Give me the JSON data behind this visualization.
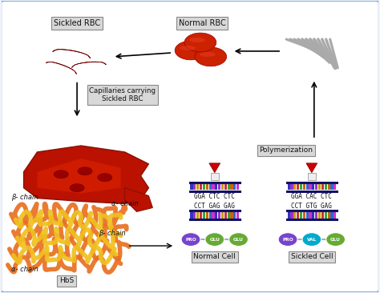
{
  "bg_color": "#eef2fa",
  "border_color": "#6699cc",
  "labels": {
    "sickled_rbc": "Sickled RBC",
    "normal_rbc": "Normal RBC",
    "capillaries": "Capillaries carrying\nSickled RBC",
    "polymerization": "Polymerization",
    "hbs": "HbS",
    "beta_chain_top": "β- chain",
    "alpha_chain_top": "α- chain",
    "beta_chain_bot": "β- chain",
    "alpha_chain_bot": "α- chain",
    "normal_cell": "Normal Cell",
    "sickled_cell": "Sickled Cell",
    "normal_top_seq": "GGA CTC CTC",
    "normal_bot_seq": "CCT GAG GAG",
    "sickled_top_seq": "GGA CAC CTC",
    "sickled_bot_seq": "CCT GTG GAG"
  },
  "colors": {
    "sickled_rbc": "#aa0000",
    "normal_rbc": "#cc2200",
    "capillary": "#cc1100",
    "hbs_orange": "#e87020",
    "hbs_yellow": "#f0c020",
    "pro_circle": "#7744cc",
    "glu_circle": "#66aa33",
    "val_circle": "#00aacc",
    "box_fill": "#d8d8d8",
    "box_edge": "#888888",
    "red_triangle": "#cc0000",
    "fiber_color": "#aaaaaa"
  },
  "dna_stripe_colors": [
    "#3333bb",
    "#9933cc",
    "#cc9900",
    "#cc3333",
    "#33aa33",
    "#cc6600",
    "#3366cc",
    "#cc33cc"
  ],
  "normal_cell_amino": [
    "PRO",
    "GLU",
    "GLU"
  ],
  "sickled_cell_amino": [
    "PRO",
    "VAL",
    "GLU"
  ],
  "normal_cell_colors": [
    "#7744cc",
    "#66aa33",
    "#66aa33"
  ],
  "sickled_cell_colors": [
    "#7744cc",
    "#00aacc",
    "#66aa33"
  ]
}
